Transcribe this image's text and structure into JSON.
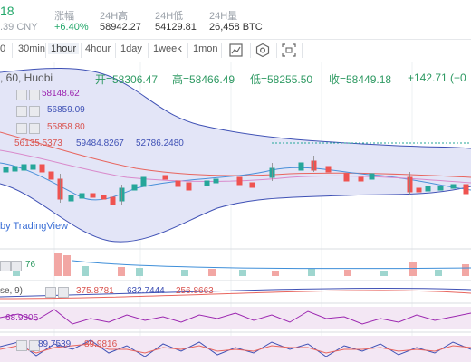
{
  "header": {
    "price_fragment": "18",
    "price_cny": ".39 CNY",
    "change_label": "涨幅",
    "change_value": "+6.40%",
    "high_label": "24H高",
    "high_value": "58942.27",
    "low_label": "24H低",
    "low_value": "54129.81",
    "volume_label": "24H量",
    "volume_value": "26,458 BTC"
  },
  "toolbar": {
    "intervals": [
      "0",
      "30min",
      "1hour",
      "4hour",
      "1day",
      "1week",
      "1mon"
    ],
    "active_interval": "1hour",
    "icons": [
      "candle-chart-icon",
      "settings-hex-icon",
      "screenshot-icon"
    ]
  },
  "chart_title": {
    "symbol_suffix": ", 60, Huobi",
    "open": "开=58306.47",
    "high": "高=58466.49",
    "low": "低=58255.50",
    "close": "收=58449.18",
    "change": "+142.71 (+0"
  },
  "ma_legend": {
    "ma1": "58148.62",
    "ma2": "56859.09",
    "ma3": "55858.80"
  },
  "boll_legend": {
    "mid": "56135.5373",
    "upper": "59484.8267",
    "lower": "52786.2480"
  },
  "watermark": "by TradingView",
  "volume_legend": {
    "value": "76"
  },
  "macd_legend": {
    "name": "se, 9)",
    "v1": "375.8781",
    "v2": "632.7444",
    "v3": "256.8663"
  },
  "rsi_legend": {
    "value": "68.9305"
  },
  "kdj_legend": {
    "v1": "89.7539",
    "v2": "89.9816"
  },
  "colors": {
    "up": "#26a69a",
    "down": "#ef5350",
    "band": "#3f51b5",
    "band_fill": "#e3e5f7",
    "accent": "#24a86b"
  }
}
